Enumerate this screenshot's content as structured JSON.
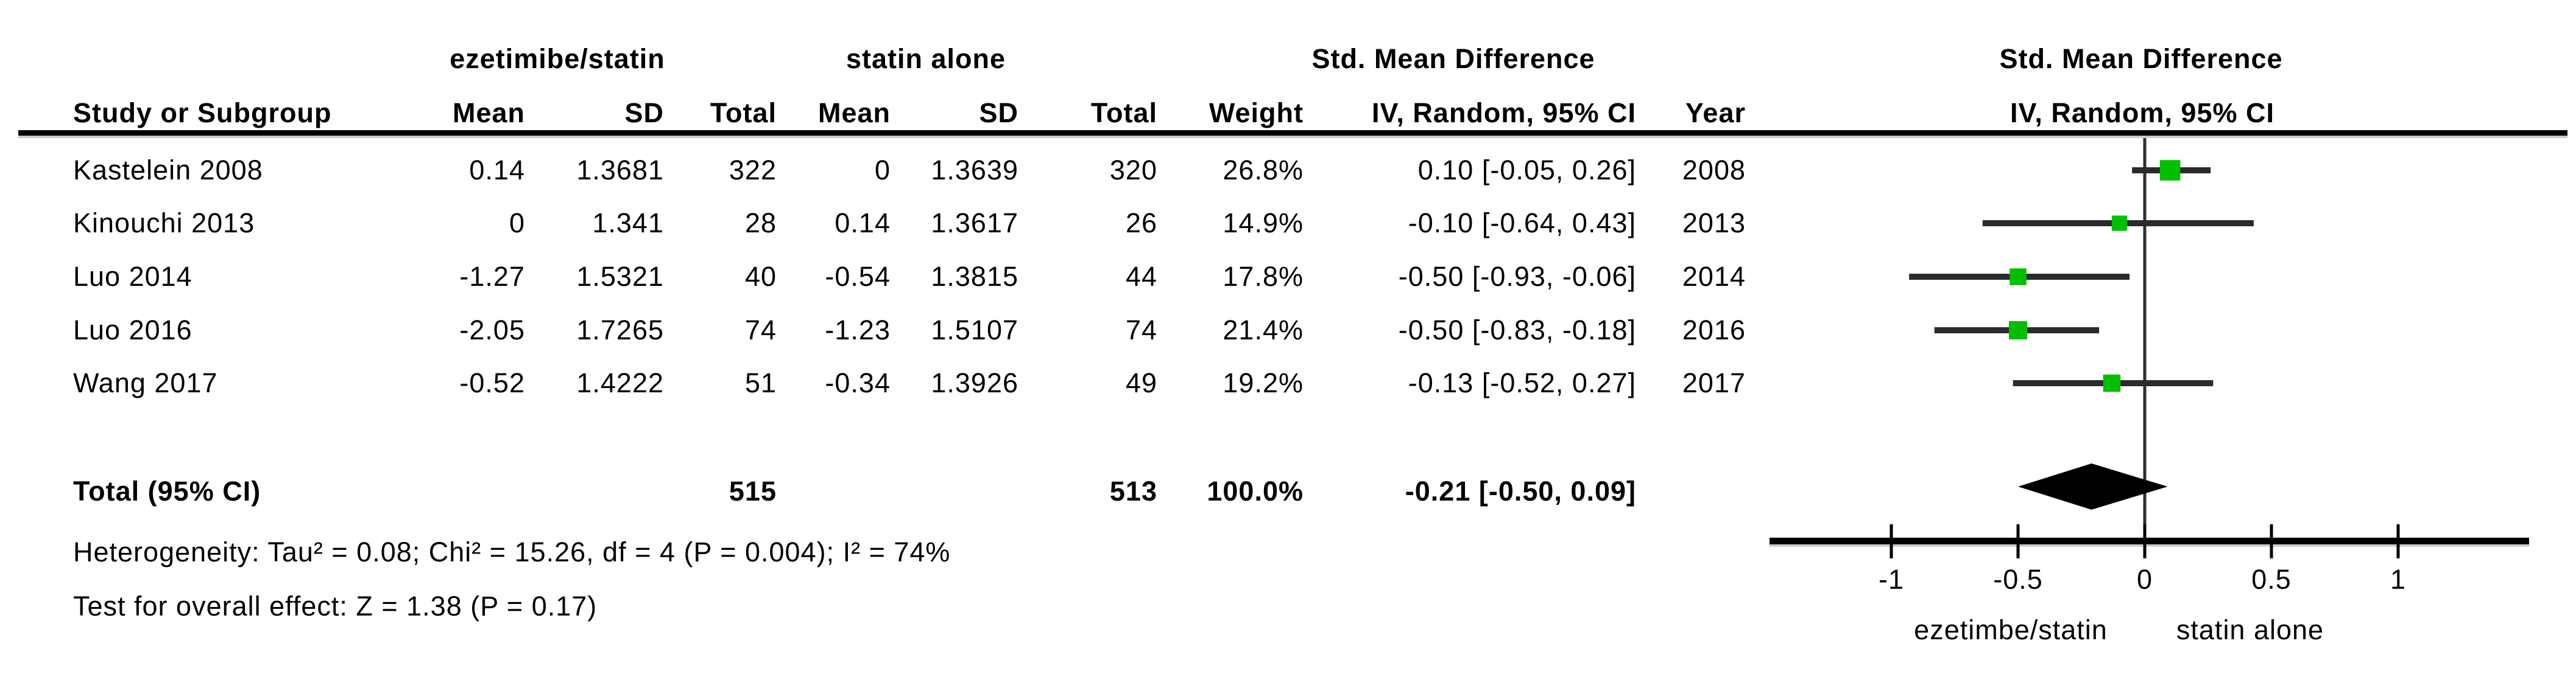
{
  "figure": {
    "group1_header": "ezetimibe/statin",
    "group2_header": "statin alone",
    "effect_col_header_line1": "Std. Mean Difference",
    "effect_col_header_line2": "IV, Random, 95% CI",
    "plot_header_line1": "Std. Mean Difference",
    "plot_header_line2": "IV, Random, 95% CI",
    "col_headers": {
      "study": "Study or Subgroup",
      "mean1": "Mean",
      "sd1": "SD",
      "total1": "Total",
      "mean2": "Mean",
      "sd2": "SD",
      "total2": "Total",
      "weight": "Weight",
      "year": "Year"
    },
    "rows": [
      {
        "study": "Kastelein 2008",
        "mean1": "0.14",
        "sd1": "1.3681",
        "total1": "322",
        "mean2": "0",
        "sd2": "1.3639",
        "total2": "320",
        "weight": "26.8%",
        "ci": "0.10 [-0.05, 0.26]",
        "year": "2008"
      },
      {
        "study": "Kinouchi 2013",
        "mean1": "0",
        "sd1": "1.341",
        "total1": "28",
        "mean2": "0.14",
        "sd2": "1.3617",
        "total2": "26",
        "weight": "14.9%",
        "ci": "-0.10 [-0.64, 0.43]",
        "year": "2013"
      },
      {
        "study": "Luo 2014",
        "mean1": "-1.27",
        "sd1": "1.5321",
        "total1": "40",
        "mean2": "-0.54",
        "sd2": "1.3815",
        "total2": "44",
        "weight": "17.8%",
        "ci": "-0.50 [-0.93, -0.06]",
        "year": "2014"
      },
      {
        "study": "Luo 2016",
        "mean1": "-2.05",
        "sd1": "1.7265",
        "total1": "74",
        "mean2": "-1.23",
        "sd2": "1.5107",
        "total2": "74",
        "weight": "21.4%",
        "ci": "-0.50 [-0.83, -0.18]",
        "year": "2016"
      },
      {
        "study": "Wang 2017",
        "mean1": "-0.52",
        "sd1": "1.4222",
        "total1": "51",
        "mean2": "-0.34",
        "sd2": "1.3926",
        "total2": "49",
        "weight": "19.2%",
        "ci": "-0.13 [-0.52, 0.27]",
        "year": "2017"
      }
    ],
    "total_row": {
      "label": "Total (95% CI)",
      "total1": "515",
      "total2": "513",
      "weight": "100.0%",
      "ci": "-0.21 [-0.50, 0.09]"
    },
    "heterogeneity": "Heterogeneity: Tau² = 0.08; Chi² = 15.26, df = 4 (P = 0.004); I² = 74%",
    "overall_effect": "Test for overall effect: Z = 1.38 (P = 0.17)"
  },
  "chart_data": {
    "type": "scatter",
    "subtype": "forest_plot_random_effects",
    "title": "Std. Mean Difference",
    "effect_measure": "IV, Random, 95% CI",
    "xlim": [
      -1.48,
      1.52
    ],
    "xticks": [
      -1,
      -0.5,
      0,
      0.5,
      1
    ],
    "xtick_labels": [
      "-1",
      "-0.5",
      "0",
      "0.5",
      "1"
    ],
    "zero_line_x": 0,
    "x_axis_left_label": "ezetimbe/statin",
    "x_axis_right_label": "statin alone",
    "studies": [
      {
        "name": "Kastelein 2008",
        "year": 2008,
        "smd": 0.1,
        "ci_low": -0.05,
        "ci_high": 0.26,
        "weight_pct": 26.8
      },
      {
        "name": "Kinouchi 2013",
        "year": 2013,
        "smd": -0.1,
        "ci_low": -0.64,
        "ci_high": 0.43,
        "weight_pct": 14.9
      },
      {
        "name": "Luo 2014",
        "year": 2014,
        "smd": -0.5,
        "ci_low": -0.93,
        "ci_high": -0.06,
        "weight_pct": 17.8
      },
      {
        "name": "Luo 2016",
        "year": 2016,
        "smd": -0.5,
        "ci_low": -0.83,
        "ci_high": -0.18,
        "weight_pct": 21.4
      },
      {
        "name": "Wang 2017",
        "year": 2017,
        "smd": -0.13,
        "ci_low": -0.52,
        "ci_high": 0.27,
        "weight_pct": 19.2
      }
    ],
    "overall": {
      "smd": -0.21,
      "ci_low": -0.5,
      "ci_high": 0.09,
      "weight_pct": 100.0
    },
    "marker_color": "#00bf00",
    "line_color": "#2b2b2b",
    "diamond_color": "#000000",
    "legend_position": "none",
    "grid": false
  }
}
